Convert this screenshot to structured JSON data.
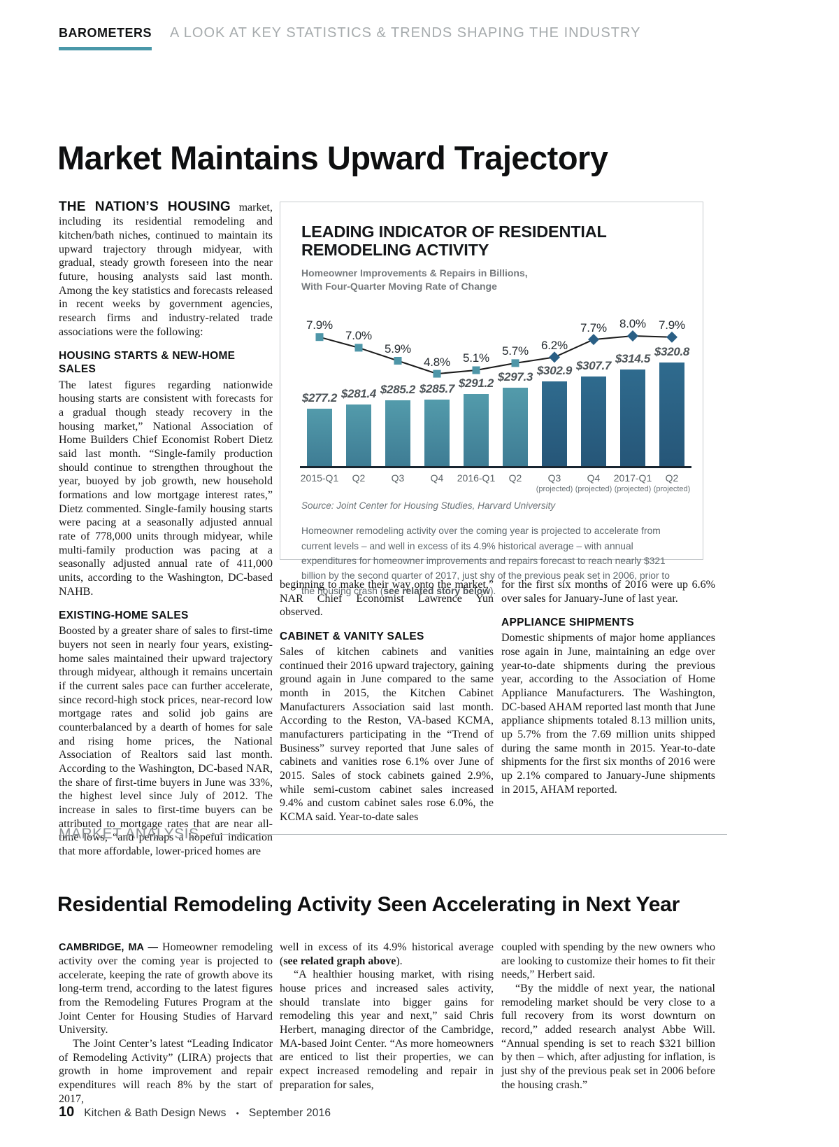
{
  "page": {
    "kicker": "BAROMETERS",
    "tagline": "A LOOK AT KEY STATISTICS & TRENDS SHAPING THE INDUSTRY",
    "title": "Market Maintains Upward Trajectory"
  },
  "article1": {
    "intro_lead": "THE NATION’S HOUSING",
    "intro_rest": " market, including its residential remodeling and kitchen/bath niches, continued to maintain its upward trajectory through midyear, with gradual, steady growth foreseen into the near future, housing analysts said last month. Among the key statistics and forecasts released in recent weeks by government agencies, research firms and industry-related trade associations were the following:",
    "housing_heading": "HOUSING STARTS & NEW-HOME SALES",
    "housing_body": "The latest figures regarding nationwide housing starts are consistent with forecasts for a gradual though steady recovery in the housing market,” National Association of Home Builders Chief Economist Robert Dietz said last month. “Single-family production should continue to strengthen throughout the year, buoyed by job growth, new household formations and low mortgage interest rates,” Dietz commented. Single-family housing starts were pacing at a seasonally adjusted annual rate of 778,000 units through midyear, while multi-family production was pacing at a seasonally adjusted annual rate of 411,000 units, according to the Washington, DC-based NAHB.",
    "existing_heading": "EXISTING-HOME SALES",
    "existing_body": "Boosted by a greater share of sales to first-time buyers not seen in nearly four years, existing-home sales maintained their upward trajectory through midyear, although it remains uncertain if the current sales pace can further accelerate, since record-high stock prices, near-record low mortgage rates and solid job gains are counterbalanced by a dearth of homes for sale and rising home prices, the National Association of Realtors said last month. According to the Washington, DC-based NAR, the share of first-time buyers in June was 33%, the highest level since July of 2012. The increase in sales to first-time buyers can be attributed to mortgage rates that are near all-time lows, “and perhaps a hopeful indication that more affordable, lower-priced homes are",
    "cont_mid": "beginning to make their way onto the market,” NAR Chief Economist Lawrence Yun observed.",
    "cabinet_heading": "CABINET & VANITY SALES",
    "cabinet_body": "Sales of kitchen cabinets and vanities continued their 2016 upward trajectory, gaining ground again in June compared to the same month in 2015, the Kitchen Cabinet Manufacturers Association said last month. According to the Reston, VA-based KCMA, manufacturers participating in the “Trend of Business” survey reported that June sales of cabinets and vanities rose 6.1% over June of 2015. Sales of stock cabinets gained 2.9%, while semi-custom cabinet sales increased 9.4% and custom cabinet sales rose 6.0%, the KCMA said. Year-to-date sales",
    "cont_right": "for the first six months of 2016 were up 6.6% over sales for January-June of last year.",
    "appliance_heading": "APPLIANCE SHIPMENTS",
    "appliance_body": "Domestic shipments of major home appliances rose again in June, maintaining an edge over year-to-date shipments during the previous year, according to the Association of Home Appliance Manufacturers. The Washington, DC-based AHAM reported last month that June appliance shipments totaled 8.13 million units, up 5.7% from the 7.69 million units shipped during the same month in 2015. Year-to-date shipments for the first six months of 2016 were up 2.1% compared to January-June shipments in 2015, AHAM reported."
  },
  "chart_data": {
    "type": "bar",
    "title": "LEADING INDICATOR OF RESIDENTIAL REMODELING ACTIVITY",
    "subtitle_line1": "Homeowner Improvements & Repairs in Billions,",
    "subtitle_line2": "With Four-Quarter Moving Rate of Change",
    "categories": [
      "2015-Q1",
      "Q2",
      "Q3",
      "Q4",
      "2016-Q1",
      "Q2",
      "Q3",
      "Q4",
      "2017-Q1",
      "Q2"
    ],
    "projected_flags": [
      false,
      false,
      false,
      false,
      false,
      false,
      true,
      true,
      true,
      true
    ],
    "projected_note": "(projected)",
    "series": [
      {
        "name": "Homeowner Improvements & Repairs ($ Billions)",
        "type": "bar",
        "values": [
          277.2,
          281.4,
          285.2,
          285.7,
          291.2,
          297.3,
          302.9,
          307.7,
          314.5,
          320.8
        ],
        "labels": [
          "$277.2",
          "$281.4",
          "$285.2",
          "$285.7",
          "$291.2",
          "$297.3",
          "$302.9",
          "$307.7",
          "$314.5",
          "$320.8"
        ]
      },
      {
        "name": "Four-Quarter Moving Rate of Change (%)",
        "type": "line",
        "values": [
          7.9,
          7.0,
          5.9,
          4.8,
          5.1,
          5.7,
          6.2,
          7.7,
          8.0,
          7.9
        ],
        "labels": [
          "7.9%",
          "7.0%",
          "5.9%",
          "4.8%",
          "5.1%",
          "5.7%",
          "6.2%",
          "7.7%",
          "8.0%",
          "7.9%"
        ]
      }
    ],
    "ylim_bars": [
      223,
      325
    ],
    "ylim_line": [
      4.3,
      8.6
    ],
    "legend_position": "none",
    "grid": false,
    "colors": {
      "bar_actual_top": "#539BAB",
      "bar_actual_bottom": "#3E7C94",
      "bar_projected_top": "#2F6B8E",
      "bar_projected_bottom": "#265678",
      "marker_actual": "#4E96A8",
      "marker_projected": "#2A5F85",
      "line": "#1a1a1a",
      "axis": "#182530",
      "accent_teal": "#4a98a9"
    },
    "source": "Source: Joint Center for Housing Studies, Harvard University",
    "caption_pre": "Homeowner remodeling activity over the coming year is projected to accelerate from current levels – and well in excess of its 4.9% historical average – with annual expenditures for homeowner improvements and repairs forecast to reach nearly $321 billion by the second quarter of 2017, just shy of the previous peak set in 2006, prior to the housing crash (",
    "caption_bold": "see related story below",
    "caption_post": ")."
  },
  "article2": {
    "label": "MARKET ANALYSIS",
    "title": "Residential Remodeling Activity Seen Accelerating in Next Year",
    "col1_dateline": "CAMBRIDGE, MA —",
    "col1_p1": " Homeowner remodeling activity over the coming year is projected to accelerate, keeping the rate of growth above its long-term trend, according to the latest figures from the Remodeling Futures Program at the Joint Center for Housing Studies of Harvard University.",
    "col1_p2": "The Joint Center’s latest “Leading Indicator of Remodeling Activity” (LIRA) projects that growth in home improvement and repair expenditures will reach 8% by the start of 2017,",
    "col2_p1_pre": "well in excess of its 4.9% historical average (",
    "col2_p1_bold": "see related graph above",
    "col2_p1_post": ").",
    "col2_p2": "“A healthier housing market, with rising house prices and increased sales activity, should translate into bigger gains for remodeling this year and next,” said Chris Herbert, managing director of the Cambridge, MA-based Joint Center. “As more homeowners are enticed to list their properties, we can expect increased remodeling and repair in preparation for sales,",
    "col3_p1": "coupled with spending by the new owners who are looking to customize their homes to fit their needs,” Herbert said.",
    "col3_p2": "“By the middle of next year, the national remodeling market should be very close to a full recovery from its worst downturn on record,” added research analyst Abbe Will. “Annual spending is set to reach $321 billion by then – which, after adjusting for inflation, is just shy of the previous peak set in 2006 before the housing crash.”"
  },
  "footer": {
    "page_number": "10",
    "publication": "Kitchen & Bath Design News",
    "bullet": "•",
    "issue": "September 2016"
  }
}
